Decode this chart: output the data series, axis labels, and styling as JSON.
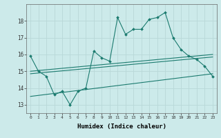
{
  "xlabel": "Humidex (Indice chaleur)",
  "background_color": "#cceaea",
  "grid_color": "#b8d8d8",
  "line_color": "#1a7a6e",
  "x": [
    0,
    1,
    2,
    3,
    4,
    5,
    6,
    7,
    8,
    9,
    10,
    11,
    12,
    13,
    14,
    15,
    16,
    17,
    18,
    19,
    20,
    21,
    22,
    23
  ],
  "y_main": [
    15.9,
    15.0,
    14.7,
    13.6,
    13.8,
    13.0,
    13.8,
    14.0,
    16.2,
    15.8,
    15.6,
    18.2,
    17.2,
    17.5,
    17.5,
    18.1,
    18.2,
    18.5,
    17.0,
    16.3,
    15.9,
    15.7,
    15.3,
    14.7
  ],
  "reg1_start": 15.0,
  "reg1_end": 16.0,
  "reg2_start": 14.85,
  "reg2_end": 15.85,
  "reg3_start": 13.5,
  "reg3_end": 14.85,
  "ylim": [
    12.5,
    19.0
  ],
  "yticks": [
    13,
    14,
    15,
    16,
    17,
    18
  ],
  "xlim": [
    -0.5,
    23.5
  ],
  "xticks": [
    0,
    1,
    2,
    3,
    4,
    5,
    6,
    7,
    8,
    9,
    10,
    11,
    12,
    13,
    14,
    15,
    16,
    17,
    18,
    19,
    20,
    21,
    22,
    23
  ]
}
